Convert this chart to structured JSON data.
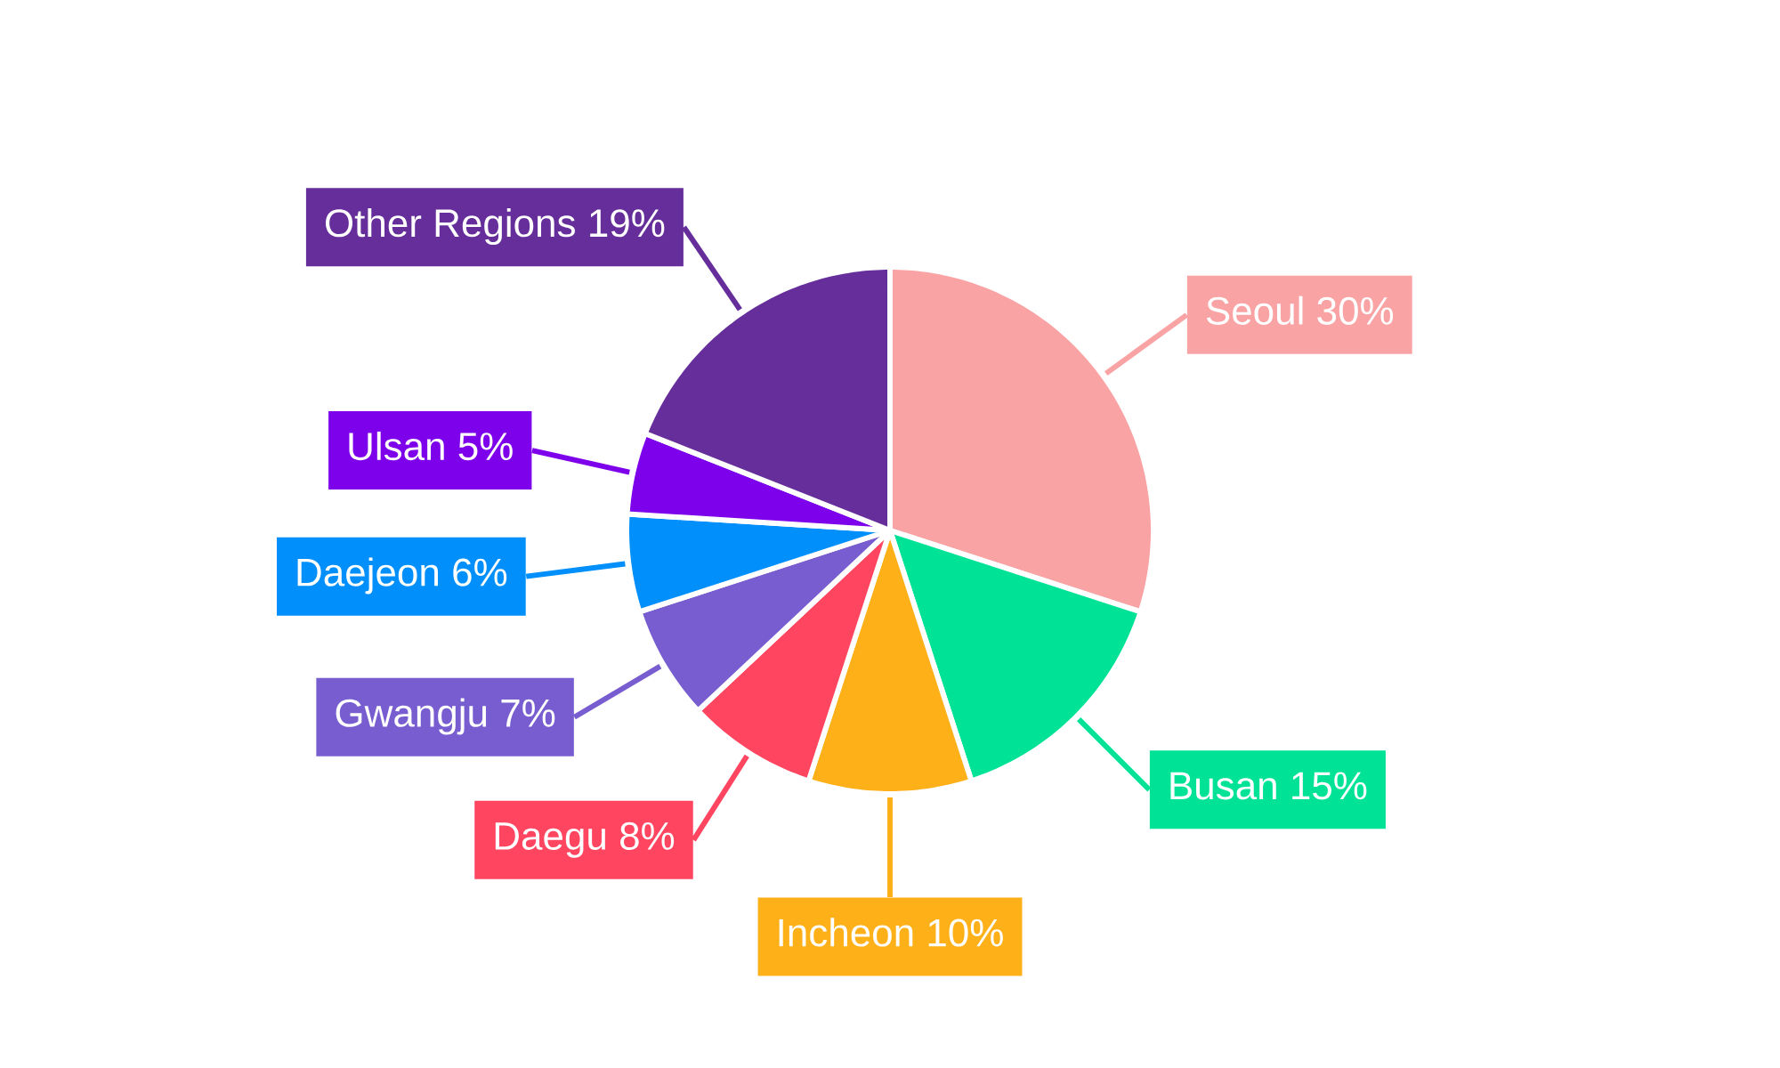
{
  "chart_data": {
    "type": "pie",
    "categories": [
      "Seoul",
      "Busan",
      "Incheon",
      "Daegu",
      "Gwangju",
      "Daejeon",
      "Ulsan",
      "Other Regions"
    ],
    "values": [
      30,
      15,
      10,
      8,
      7,
      6,
      5,
      19
    ],
    "value_labels": [
      "30%",
      "15%",
      "10%",
      "8%",
      "7%",
      "6%",
      "5%",
      "19%"
    ],
    "colors": [
      "#f9a3a4",
      "#00e396",
      "#feb019",
      "#ff4560",
      "#775dd0",
      "#008ffb",
      "#7d02eb",
      "#662e9b"
    ]
  }
}
